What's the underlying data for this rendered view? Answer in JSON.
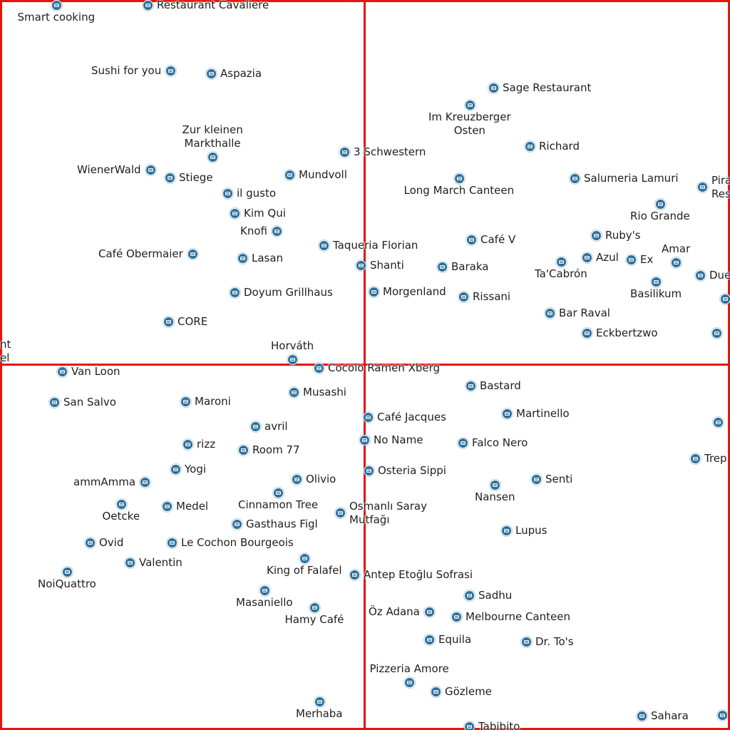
{
  "restaurants": [
    {
      "name": "Smart cooking"
    },
    {
      "name": "Restaurant Cavaliere"
    },
    {
      "name": "Sushi for you"
    },
    {
      "name": "Aspazia"
    },
    {
      "name": "Zur kleinen\nMarkthalle"
    },
    {
      "name": "WienerWald"
    },
    {
      "name": "Stiege"
    },
    {
      "name": "3 Schwestern"
    },
    {
      "name": "Mundvoll"
    },
    {
      "name": "il gusto"
    },
    {
      "name": "Kim Qui"
    },
    {
      "name": "Knofi"
    },
    {
      "name": "Café Obermaier"
    },
    {
      "name": "Lasan"
    },
    {
      "name": "Taqueria Florian"
    },
    {
      "name": "Shanti"
    },
    {
      "name": "Doyum Grillhaus"
    },
    {
      "name": "Morgenland"
    },
    {
      "name": "CORE"
    },
    {
      "name": "Horváth"
    },
    {
      "name": "nt\nel"
    },
    {
      "name": "Sage Restaurant"
    },
    {
      "name": "Im Kreuzberger\nOsten"
    },
    {
      "name": "Richard"
    },
    {
      "name": "Long March Canteen"
    },
    {
      "name": "Salumeria Lamuri"
    },
    {
      "name": "Pira\nRes"
    },
    {
      "name": "Rio Grande"
    },
    {
      "name": "Café V"
    },
    {
      "name": "Ruby's"
    },
    {
      "name": "Baraka"
    },
    {
      "name": "Ta'Cabrón"
    },
    {
      "name": "Azul"
    },
    {
      "name": "Ex"
    },
    {
      "name": "Amar"
    },
    {
      "name": "Due"
    },
    {
      "name": "Basilikum"
    },
    {
      "name": "Rissani"
    },
    {
      "name": "Bar Raval"
    },
    {
      "name": "Eckbertzwo"
    },
    {
      "name": ""
    },
    {
      "name": ""
    },
    {
      "name": "Van Loon"
    },
    {
      "name": "Cocolo Ramen Xberg"
    },
    {
      "name": "Bastard"
    },
    {
      "name": "San Salvo"
    },
    {
      "name": "Maroni"
    },
    {
      "name": "Musashi"
    },
    {
      "name": "Café Jacques"
    },
    {
      "name": "Martinello"
    },
    {
      "name": ""
    },
    {
      "name": "avril"
    },
    {
      "name": "rizz"
    },
    {
      "name": "Room 77"
    },
    {
      "name": "No Name"
    },
    {
      "name": "Falco Nero"
    },
    {
      "name": "Trep"
    },
    {
      "name": "Yogi"
    },
    {
      "name": "Osteria Sippi"
    },
    {
      "name": "ammAmma"
    },
    {
      "name": "Olivio"
    },
    {
      "name": "Senti"
    },
    {
      "name": "Nansen"
    },
    {
      "name": "Oetcke"
    },
    {
      "name": "Medel"
    },
    {
      "name": "Cinnamon Tree"
    },
    {
      "name": "Osmanlı Saray\nMutfağı"
    },
    {
      "name": "Gasthaus Figl"
    },
    {
      "name": "Lupus"
    },
    {
      "name": "Ovid"
    },
    {
      "name": "Le Cochon Bourgeois"
    },
    {
      "name": "Valentin"
    },
    {
      "name": "King of Falafel"
    },
    {
      "name": "NoiQuattro"
    },
    {
      "name": "Antep Etoğlu Sofrasi"
    },
    {
      "name": "Sadhu"
    },
    {
      "name": "Masaniello"
    },
    {
      "name": "Öz Adana"
    },
    {
      "name": "Melbourne Canteen"
    },
    {
      "name": "Hamy Café"
    },
    {
      "name": "Equila"
    },
    {
      "name": "Dr. To's"
    },
    {
      "name": "Pizzeria Amore"
    },
    {
      "name": "Gözleme"
    },
    {
      "name": "Merhaba"
    },
    {
      "name": "Sahara"
    },
    {
      "name": ""
    },
    {
      "name": "Tabibito"
    }
  ]
}
